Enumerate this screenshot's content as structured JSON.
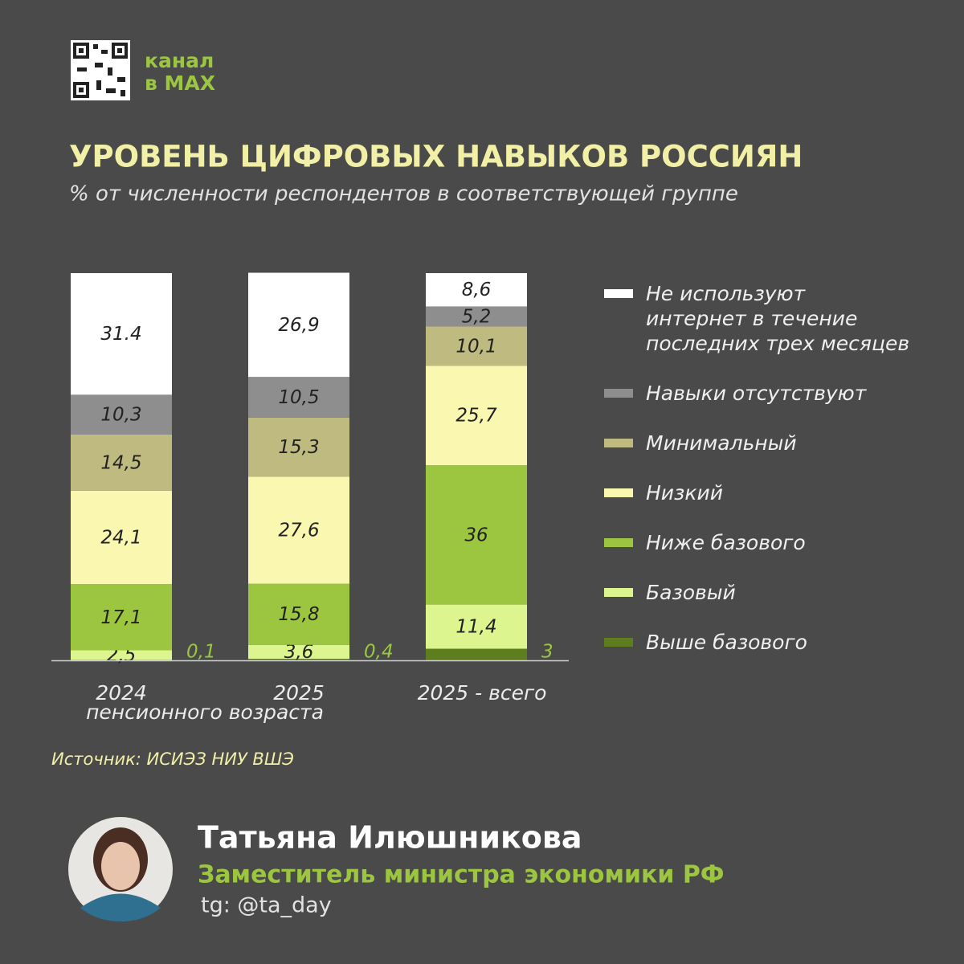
{
  "header": {
    "channel": [
      "канал",
      "в MAX"
    ]
  },
  "chart_data": {
    "type": "bar",
    "stacked": true,
    "title": "УРОВЕНЬ ЦИФРОВЫХ НАВЫКОВ РОССИЯН",
    "subtitle": "% от численности респондентов в соответствующей группе",
    "categories": [
      "2024",
      "2025",
      "2025 - всего"
    ],
    "group_label": "пенсионного возраста",
    "ylim": [
      0,
      100
    ],
    "series": [
      {
        "name": "Выше базового",
        "color": "#5e7d1f",
        "values": [
          0.1,
          0.4,
          3
        ],
        "value_labels": [
          "0,1",
          "0,4",
          "3"
        ],
        "labels_outside": true
      },
      {
        "name": "Базовый",
        "color": "#dcf58e",
        "values": [
          2.5,
          3.6,
          11.4
        ],
        "value_labels": [
          "2,5",
          "3,6",
          "11,4"
        ]
      },
      {
        "name": "Ниже базового",
        "color": "#9cc640",
        "values": [
          17.1,
          15.8,
          36
        ],
        "value_labels": [
          "17,1",
          "15,8",
          "36"
        ]
      },
      {
        "name": "Низкий",
        "color": "#faf7b0",
        "values": [
          24.1,
          27.6,
          25.7
        ],
        "value_labels": [
          "24,1",
          "27,6",
          "25,7"
        ]
      },
      {
        "name": "Минимальный",
        "color": "#bfba80",
        "values": [
          14.5,
          15.3,
          10.1
        ],
        "value_labels": [
          "14,5",
          "15,3",
          "10,1"
        ]
      },
      {
        "name": "Навыки отсутствуют",
        "color": "#8e8e8e",
        "values": [
          10.3,
          10.5,
          5.2
        ],
        "value_labels": [
          "10,3",
          "10,5",
          "5,2"
        ]
      },
      {
        "name": "Не используют интернет в течение последних трех месяцев",
        "color": "#ffffff",
        "values": [
          31.4,
          26.9,
          8.6
        ],
        "value_labels": [
          "31.4",
          "26,9",
          "8,6"
        ]
      }
    ],
    "source": "Источник: ИСИЭЗ НИУ ВШЭ"
  },
  "author": {
    "name": "Татьяна Илюшникова",
    "role": "Заместитель министра экономики РФ",
    "telegram": "tg: @ta_day"
  }
}
